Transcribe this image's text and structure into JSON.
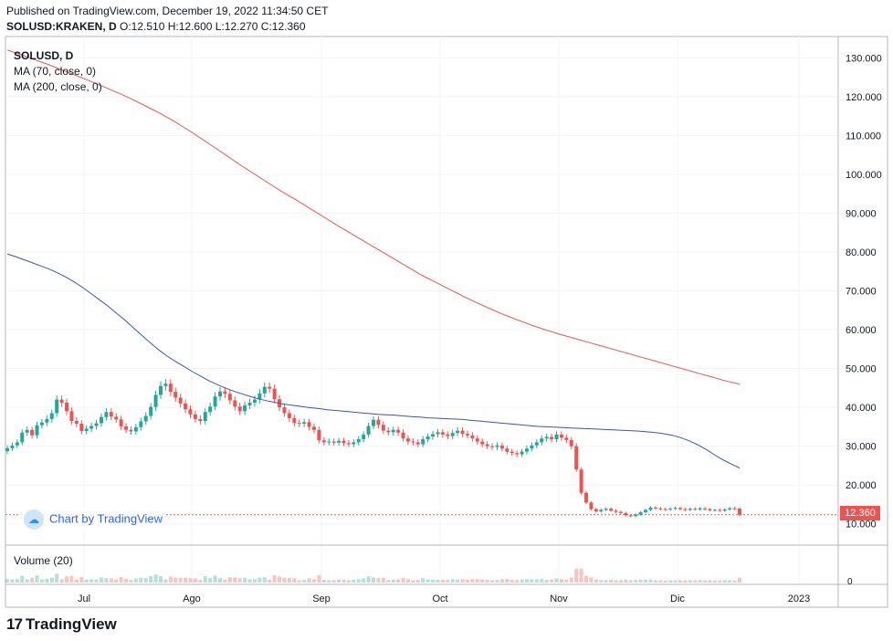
{
  "header": {
    "published": "Published on TradingView.com, December 19, 2022 11:34:50 CET",
    "symbol": "SOLUSD:KRAKEN, D",
    "ohlc": "O:12.510 H:12.600 L:12.270 C:12.360"
  },
  "legend": {
    "title": "SOLUSD, D",
    "ma70": "MA (70, close, 0)",
    "ma200": "MA (200, close, 0)"
  },
  "watermark": "Chart by TradingView",
  "volume_label": "Volume (20)",
  "brand": "TradingView",
  "last_price": "12.360",
  "colors": {
    "up": "#26a69a",
    "down": "#ef5350",
    "ma70": "#3f51b5",
    "ma200": "#ef5350",
    "grid": "#f0f3fa"
  },
  "chart_data": {
    "type": "candlestick",
    "y_axis_ticks": [
      "130.000",
      "120.000",
      "110.000",
      "100.000",
      "90.000",
      "80.000",
      "70.000",
      "60.000",
      "50.000",
      "40.000",
      "30.000",
      "20.000",
      "10.000"
    ],
    "x_axis_ticks": [
      "Jul",
      "Ago",
      "Sep",
      "Oct",
      "Nov",
      "Dic",
      "2023"
    ],
    "volume_axis_ticks": [
      "0"
    ],
    "ylim": [
      5,
      135
    ],
    "last_close": 12.36,
    "close": [
      29.5,
      30.2,
      31.0,
      33.5,
      34.2,
      32.8,
      35.4,
      36.1,
      37.0,
      38.5,
      42.0,
      41.2,
      39.0,
      36.5,
      35.8,
      33.9,
      34.5,
      35.2,
      35.9,
      37.5,
      38.8,
      37.6,
      36.9,
      35.1,
      34.2,
      33.8,
      34.9,
      36.4,
      37.8,
      40.1,
      43.2,
      45.5,
      46.1,
      44.0,
      42.5,
      41.0,
      39.5,
      38.2,
      37.0,
      36.5,
      38.8,
      40.2,
      42.8,
      44.1,
      43.5,
      41.8,
      40.2,
      39.0,
      40.5,
      41.2,
      42.0,
      43.6,
      45.3,
      44.8,
      42.1,
      40.0,
      38.5,
      37.2,
      36.0,
      35.8,
      36.2,
      35.0,
      34.2,
      31.5,
      31.0,
      31.2,
      30.9,
      31.4,
      30.8,
      30.5,
      31.0,
      31.8,
      33.0,
      35.2,
      36.8,
      35.5,
      34.0,
      33.6,
      34.2,
      33.5,
      32.0,
      31.2,
      31.0,
      30.5,
      31.8,
      32.5,
      33.1,
      33.6,
      33.0,
      32.6,
      33.4,
      34.0,
      33.2,
      32.8,
      32.0,
      31.2,
      30.5,
      30.0,
      29.8,
      30.2,
      29.4,
      28.6,
      28.2,
      27.9,
      28.6,
      29.4,
      30.2,
      31.0,
      32.0,
      32.4,
      31.8,
      33.0,
      32.2,
      31.6,
      30.0,
      24.0,
      18.0,
      15.5,
      13.8,
      13.2,
      13.6,
      13.9,
      13.4,
      13.1,
      12.8,
      12.2,
      12.0,
      12.4,
      13.0,
      13.6,
      14.2,
      14.0,
      13.8,
      13.7,
      13.9,
      14.1,
      13.8,
      13.6,
      13.9,
      13.7,
      14.0,
      13.8,
      13.5,
      13.6,
      13.4,
      13.7,
      14.0,
      13.9,
      12.36
    ],
    "ma70": [
      79.5,
      78.8,
      78.0,
      77.2,
      76.4,
      75.6,
      74.6,
      73.5,
      72.2,
      70.8,
      69.2,
      67.6,
      66.0,
      64.2,
      62.4,
      60.4,
      58.5,
      56.6,
      54.8,
      53.2,
      51.8,
      50.5,
      49.2,
      48.0,
      46.8,
      45.8,
      44.9,
      44.1,
      43.4,
      42.7,
      42.1,
      41.6,
      41.2,
      40.8,
      40.5,
      40.2,
      39.9,
      39.7,
      39.4,
      39.2,
      39.0,
      38.8,
      38.6,
      38.4,
      38.2,
      38.1,
      38.0,
      37.8,
      37.6,
      37.5,
      37.3,
      37.2,
      37.1,
      37.0,
      36.9,
      36.7,
      36.5,
      36.3,
      36.1,
      35.9,
      35.7,
      35.5,
      35.3,
      35.1,
      35.0,
      34.9,
      34.8,
      34.7,
      34.6,
      34.5,
      34.4,
      34.3,
      34.2,
      34.1,
      34.0,
      33.9,
      33.7,
      33.5,
      33.2,
      32.8,
      32.2,
      31.4,
      30.4,
      29.2,
      27.8,
      26.5,
      25.4,
      24.4
    ],
    "ma200": [
      132.0,
      130.8,
      129.5,
      128.2,
      126.8,
      125.4,
      124.0,
      122.5,
      121.0,
      119.4,
      117.6,
      115.8,
      113.8,
      111.6,
      109.3,
      106.9,
      104.5,
      102.1,
      99.8,
      97.5,
      95.3,
      93.2,
      91.0,
      88.8,
      86.6,
      84.5,
      82.4,
      80.3,
      78.2,
      76.1,
      74.0,
      72.2,
      70.4,
      68.6,
      66.9,
      65.3,
      63.8,
      62.4,
      61.1,
      59.9,
      58.8,
      57.8,
      56.8,
      55.8,
      54.8,
      53.8,
      52.8,
      51.8,
      50.8,
      49.8,
      48.8,
      47.8,
      46.8,
      46.0
    ]
  }
}
